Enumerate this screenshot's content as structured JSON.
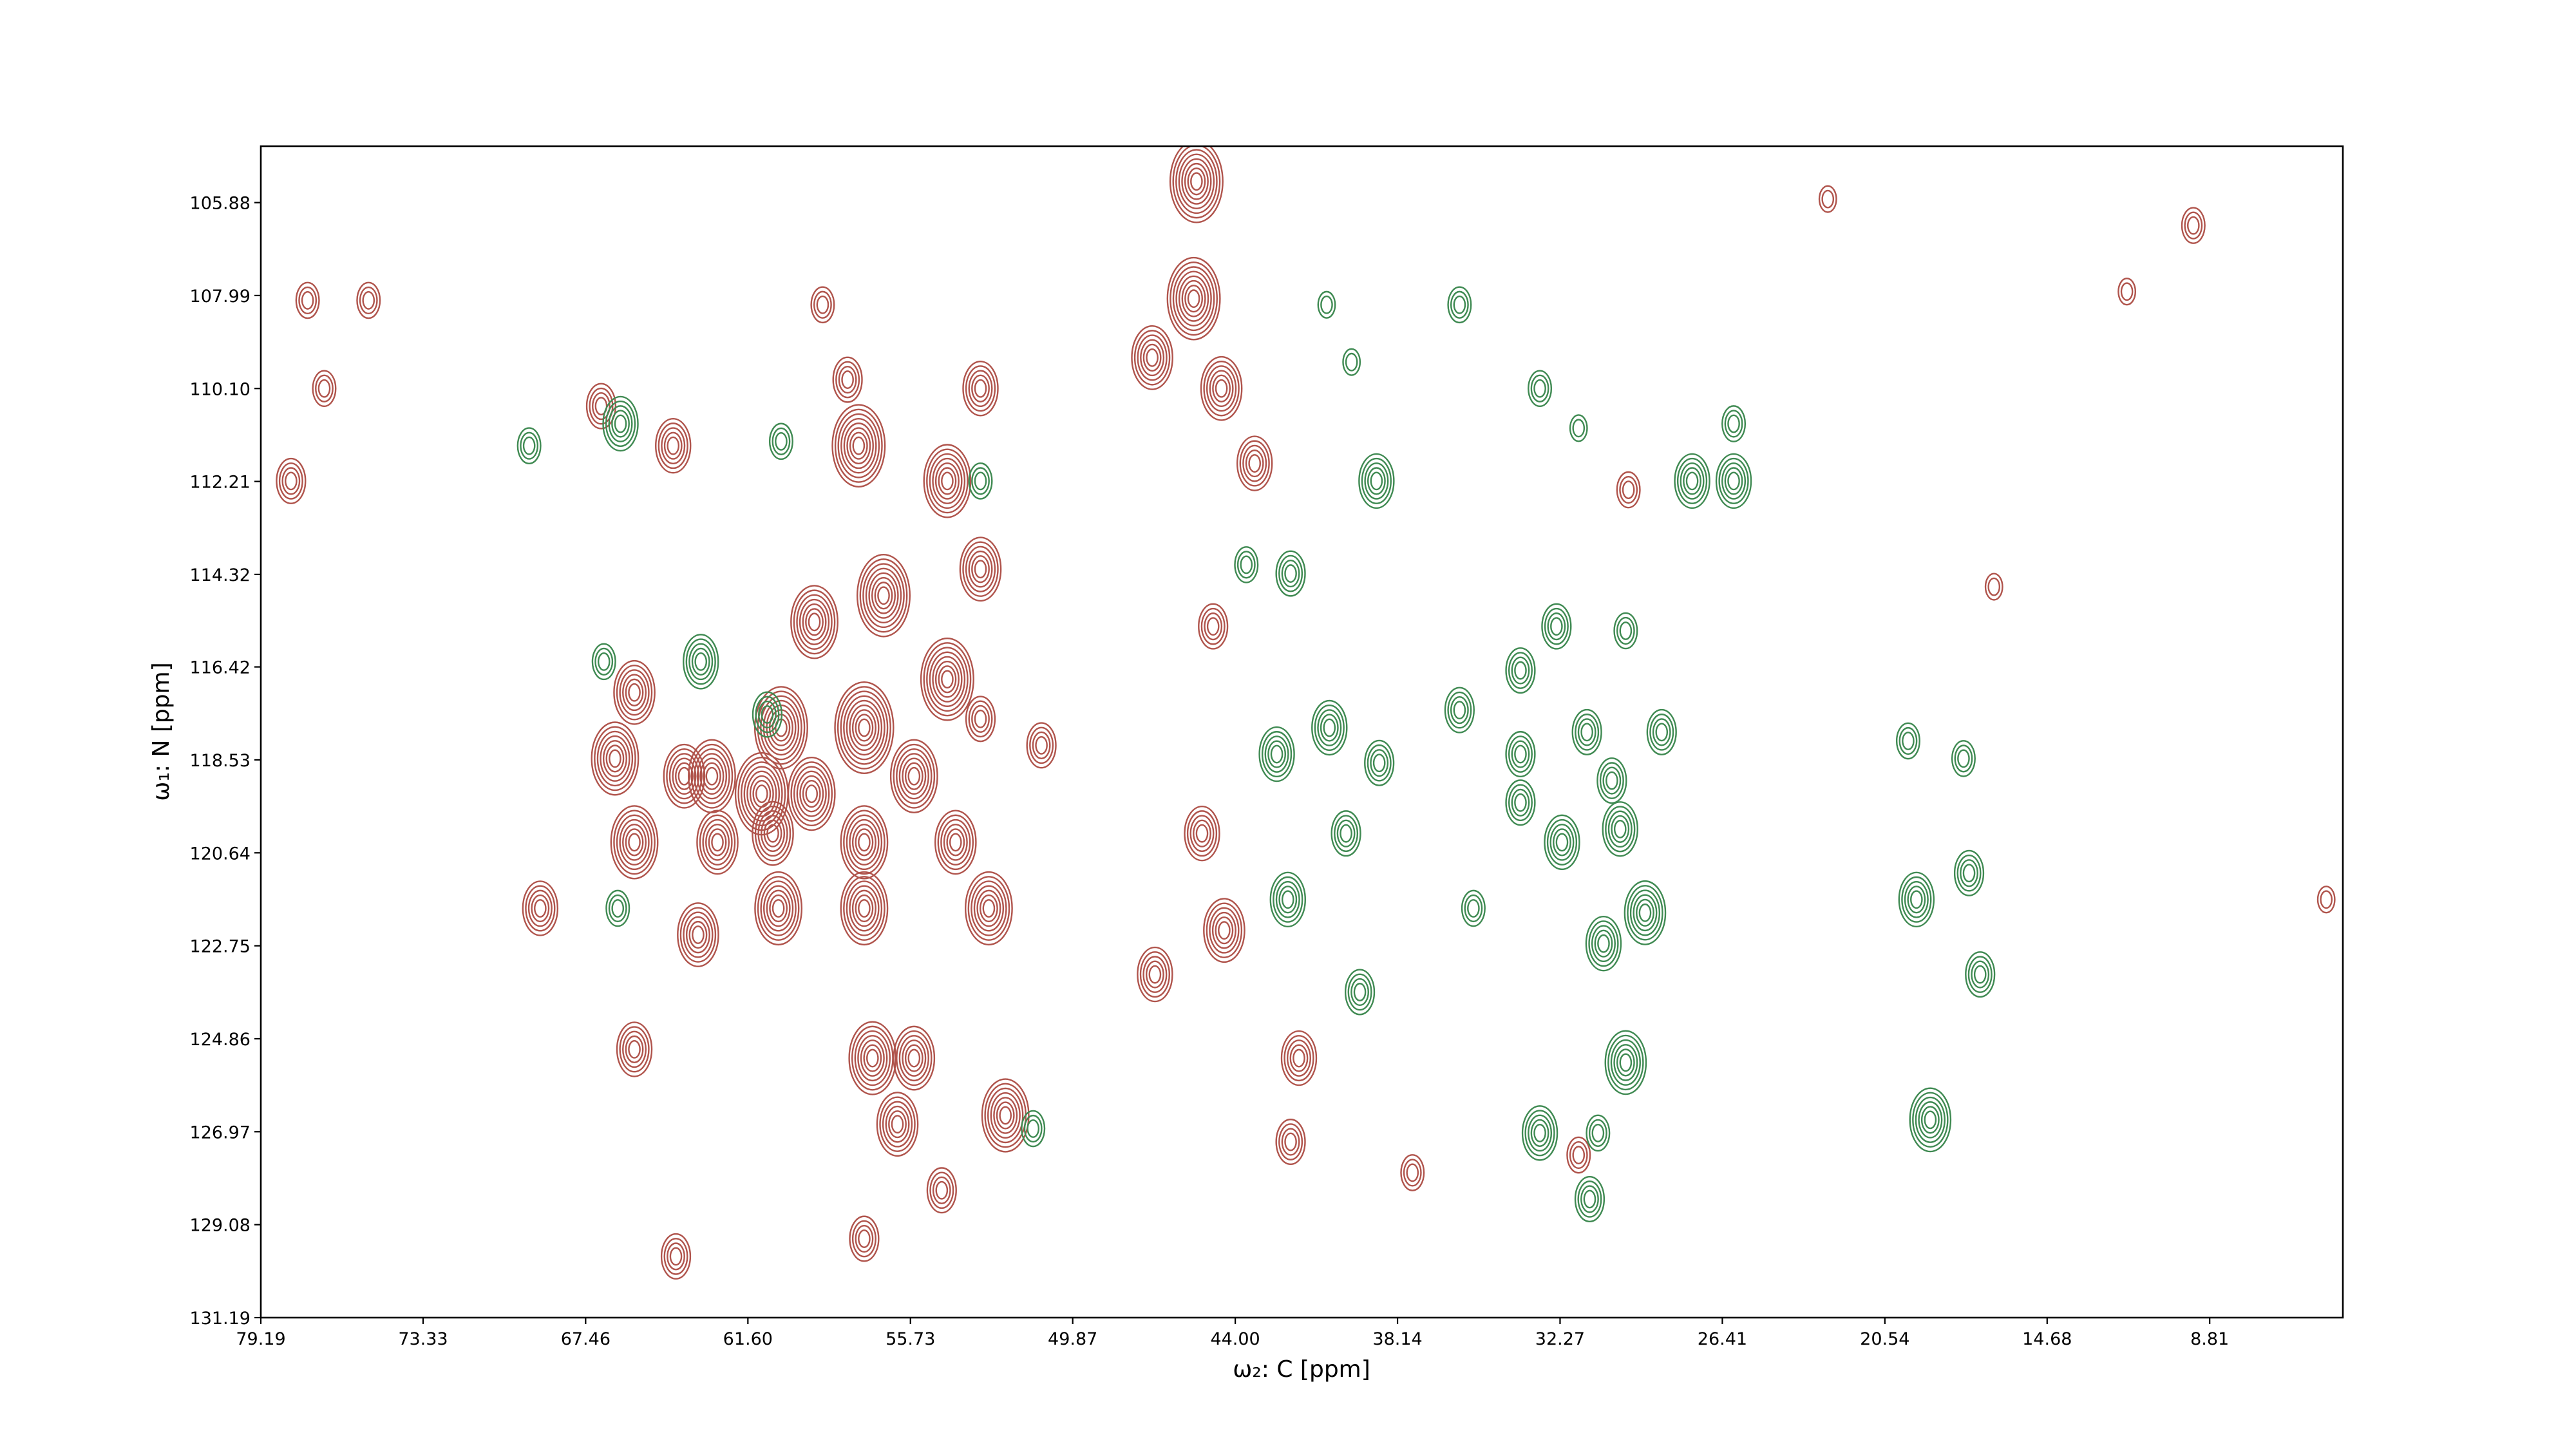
{
  "chart_data": {
    "type": "contour",
    "xlabel": "ω₂: C [ppm]",
    "ylabel": "ω₁: N [ppm]",
    "xlim": [
      79.19,
      4.0
    ],
    "ylim": [
      131.19,
      104.6
    ],
    "xticks": [
      79.19,
      73.33,
      67.46,
      {
        "value": 61.6,
        "label": "61.60"
      },
      55.73,
      49.87,
      {
        "value": 44,
        "label": "44.00"
      },
      38.14,
      32.27,
      26.41,
      20.54,
      14.68,
      8.81
    ],
    "yticks": [
      105.88,
      107.99,
      {
        "value": 110.1,
        "label": "110.10"
      },
      112.21,
      114.32,
      116.42,
      118.53,
      120.64,
      122.75,
      124.86,
      126.97,
      129.08,
      131.19
    ],
    "series": [
      {
        "color": "#b0544c",
        "x": [
          45.4,
          45.5,
          47.0,
          44.5,
          43.3,
          54.4,
          57.6,
          58.0,
          53.2,
          64.3,
          66.9,
          78.1,
          76.9,
          53.2,
          56.7,
          59.2,
          54.4,
          57.4,
          60.4,
          62.9,
          61.1,
          59.3,
          55.6,
          63.9,
          65.7,
          66.4,
          65.7,
          62.7,
          60.7,
          57.4,
          54.1,
          52.9,
          60.5,
          63.4,
          57.4,
          69.1,
          51.0,
          53.2,
          65.7,
          57.1,
          55.6,
          56.2,
          52.3,
          54.6,
          57.4,
          64.2,
          46.9,
          44.4,
          45.2,
          44.8,
          41.7,
          42.0,
          37.6,
          29.8,
          9.4,
          22.6,
          75.3,
          77.5,
          58.9,
          11.8,
          4.6,
          16.6,
          31.6
        ],
        "y": [
          105.4,
          108.06,
          109.4,
          110.1,
          111.8,
          112.2,
          111.4,
          109.9,
          110.1,
          111.4,
          110.5,
          112.2,
          110.1,
          114.2,
          114.8,
          115.4,
          116.7,
          117.8,
          117.8,
          118.9,
          119.3,
          119.3,
          118.9,
          118.9,
          117.0,
          118.5,
          120.4,
          120.4,
          120.2,
          120.4,
          120.4,
          121.9,
          121.9,
          122.5,
          121.9,
          121.9,
          118.2,
          117.6,
          125.1,
          125.3,
          125.3,
          126.8,
          126.6,
          128.3,
          129.4,
          129.8,
          123.4,
          122.4,
          120.2,
          115.5,
          125.3,
          127.2,
          127.9,
          112.4,
          106.4,
          105.8,
          108.1,
          108.1,
          108.2,
          107.9,
          121.7,
          114.6,
          127.5
        ],
        "levels": [
          8,
          8,
          6,
          6,
          5,
          7,
          8,
          4,
          5,
          5,
          4,
          4,
          3,
          6,
          8,
          7,
          8,
          9,
          8,
          7,
          8,
          7,
          7,
          6,
          6,
          7,
          7,
          6,
          6,
          7,
          6,
          7,
          7,
          6,
          7,
          5,
          4,
          4,
          5,
          7,
          6,
          6,
          7,
          4,
          4,
          4,
          5,
          6,
          5,
          4,
          5,
          4,
          3,
          3,
          3,
          2,
          3,
          3,
          3,
          2,
          2,
          2,
          3
        ]
      },
      {
        "color": "#3f8a52",
        "x": [
          66.2,
          69.5,
          63.3,
          66.8,
          60.9,
          42.0,
          43.6,
          38.9,
          42.5,
          40.6,
          38.8,
          40.0,
          42.1,
          39.5,
          35.9,
          35.9,
          33.0,
          32.4,
          33.7,
          33.7,
          33.7,
          32.2,
          31.3,
          30.4,
          30.1,
          30.7,
          29.2,
          28.6,
          29.9,
          29.9,
          33.0,
          30.9,
          31.2,
          27.5,
          26.0,
          26.0,
          19.4,
          17.5,
          17.1,
          18.9,
          19.7,
          17.7,
          40.7,
          39.8,
          66.3,
          51.3,
          53.2,
          60.4,
          35.4,
          31.6
        ],
        "y": [
          110.9,
          111.4,
          116.3,
          116.3,
          117.5,
          114.3,
          114.1,
          112.2,
          118.4,
          117.8,
          118.6,
          120.2,
          121.7,
          123.8,
          117.4,
          108.2,
          110.1,
          115.5,
          116.5,
          118.4,
          119.5,
          120.4,
          117.9,
          119.0,
          120.1,
          122.7,
          122.0,
          117.9,
          115.6,
          125.4,
          127.0,
          127.0,
          128.5,
          112.2,
          112.2,
          110.9,
          121.7,
          121.1,
          123.4,
          126.7,
          118.1,
          118.5,
          108.2,
          109.5,
          121.9,
          126.9,
          112.2,
          111.3,
          121.9,
          111.0
        ],
        "levels": [
          5,
          3,
          5,
          3,
          4,
          4,
          3,
          5,
          5,
          5,
          4,
          4,
          5,
          4,
          4,
          3,
          3,
          4,
          4,
          4,
          4,
          5,
          4,
          4,
          5,
          5,
          6,
          4,
          3,
          6,
          5,
          3,
          4,
          5,
          5,
          3,
          5,
          4,
          4,
          6,
          3,
          3,
          2,
          2,
          3,
          3,
          3,
          3,
          3,
          2
        ]
      }
    ]
  }
}
